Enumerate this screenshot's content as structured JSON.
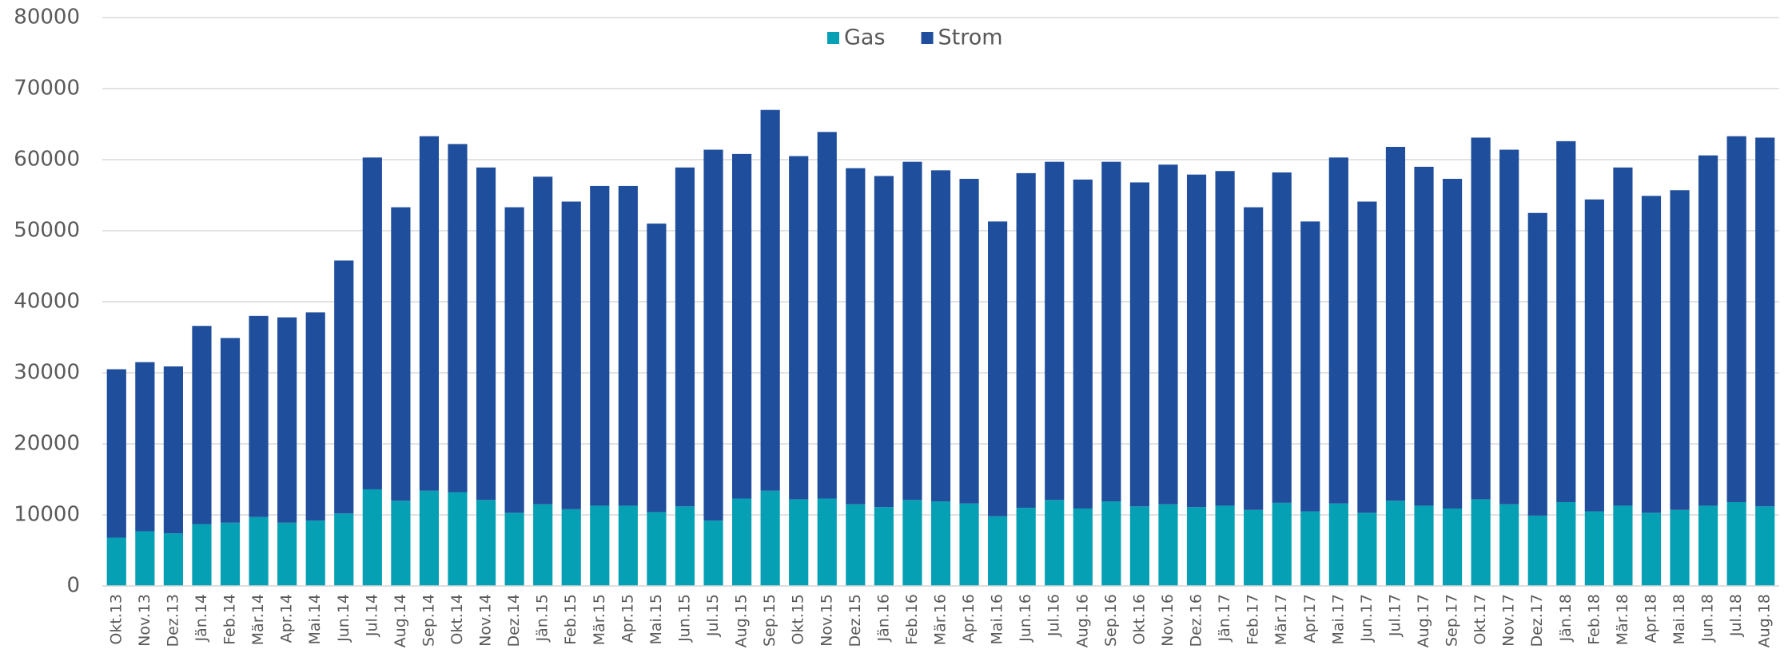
{
  "chart_data": {
    "type": "stacked_bar",
    "categories": [
      "Okt.13",
      "Nov.13",
      "Dez.13",
      "Jän.14",
      "Feb.14",
      "Mär.14",
      "Apr.14",
      "Mai.14",
      "Jun.14",
      "Jul.14",
      "Aug.14",
      "Sep.14",
      "Okt.14",
      "Nov.14",
      "Dez.14",
      "Jän.15",
      "Feb.15",
      "Mär.15",
      "Apr.15",
      "Mai.15",
      "Jun.15",
      "Jul.15",
      "Aug.15",
      "Sep.15",
      "Okt.15",
      "Nov.15",
      "Dez.15",
      "Jän.16",
      "Feb.16",
      "Mär.16",
      "Apr.16",
      "Mai.16",
      "Jun.16",
      "Jul.16",
      "Aug.16",
      "Sep.16",
      "Okt.16",
      "Nov.16",
      "Dez.16",
      "Jän.17",
      "Feb.17",
      "Mär.17",
      "Apr.17",
      "Mai.17",
      "Jun.17",
      "Jul.17",
      "Aug.17",
      "Sep.17",
      "Okt.17",
      "Nov.17",
      "Dez.17",
      "Jän.18",
      "Feb.18",
      "Mär.18",
      "Apr.18",
      "Mai.18",
      "Jun.18",
      "Jul.18",
      "Aug.18"
    ],
    "series": [
      {
        "name": "Gas",
        "color": "#06a0b5",
        "values": [
          6800,
          7700,
          7400,
          8700,
          8900,
          9700,
          8900,
          9200,
          10200,
          13600,
          12000,
          13400,
          13200,
          12100,
          10300,
          11500,
          10800,
          11300,
          11300,
          10400,
          11200,
          9200,
          12300,
          13400,
          12200,
          12300,
          11500,
          11100,
          12100,
          11900,
          11600,
          9800,
          11000,
          12100,
          10900,
          11900,
          11200,
          11500,
          11100,
          11300,
          10700,
          11700,
          10500,
          11600,
          10300,
          12000,
          11300,
          10900,
          12200,
          11500,
          9900,
          11800,
          10500,
          11300,
          10300,
          10700,
          11300,
          11800,
          11200
        ]
      },
      {
        "name": "Strom",
        "color": "#1f4e9c",
        "values": [
          23700,
          23800,
          23500,
          27900,
          26000,
          28300,
          28900,
          29300,
          35600,
          46700,
          41300,
          49900,
          49000,
          46800,
          43000,
          46100,
          43300,
          45000,
          45000,
          40600,
          47700,
          52200,
          48500,
          53600,
          48300,
          51600,
          47300,
          46600,
          47600,
          46600,
          45700,
          41500,
          47100,
          47600,
          46300,
          47800,
          45600,
          47800,
          46800,
          47100,
          42600,
          46500,
          40800,
          48700,
          43800,
          49800,
          47700,
          46400,
          50900,
          49900,
          42600,
          50800,
          43900,
          47600,
          44600,
          45000,
          49300,
          51500,
          51900
        ]
      }
    ],
    "ylim": [
      0,
      80000
    ],
    "yticks": [
      0,
      10000,
      20000,
      30000,
      40000,
      50000,
      60000,
      70000,
      80000
    ],
    "grid": true,
    "legend": "top"
  }
}
